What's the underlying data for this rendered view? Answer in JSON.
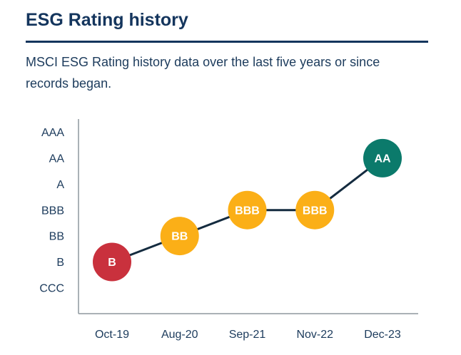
{
  "header": {
    "title": "ESG Rating history",
    "description": "MSCI ESG Rating history data over the last five years or since records began."
  },
  "chart_data": {
    "type": "line",
    "title": "ESG Rating history",
    "subtitle": "MSCI ESG Rating history data over the last five years or since records began.",
    "x_labels": [
      "Oct-19",
      "Aug-20",
      "Sep-21",
      "Nov-22",
      "Dec-23"
    ],
    "y_tick_labels_top_to_bottom": [
      "AAA",
      "AA",
      "A",
      "BBB",
      "BB",
      "B",
      "CCC"
    ],
    "series": [
      {
        "name": "MSCI ESG Rating",
        "values": [
          "B",
          "BB",
          "BBB",
          "BBB",
          "AA"
        ]
      }
    ],
    "point_colors": [
      "#C9313D",
      "#FBAF17",
      "#FBAF17",
      "#FBAF17",
      "#0B7A6B"
    ],
    "point_label_color": "#FFFFFF",
    "line_color": "#142B3F",
    "axis_color": "#8E979E",
    "tick_label_color": "#1C3B5C",
    "grid": false,
    "legend": false,
    "ylim": [
      "CCC",
      "AAA"
    ]
  },
  "colors": {
    "navy_text": "#14355D",
    "rule": "#14355D"
  }
}
